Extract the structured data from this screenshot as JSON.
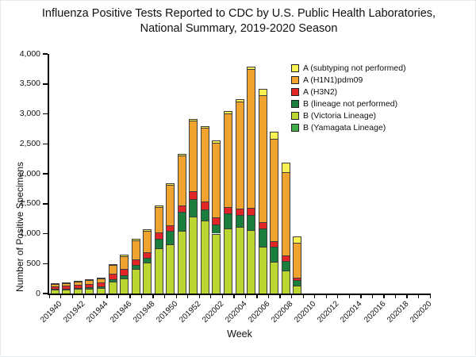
{
  "title": {
    "line1": "Influenza Positive Tests Reported to CDC by U.S. Public Health Laboratories,",
    "line2": "National Summary, 2019-2020 Season"
  },
  "chart_data": {
    "type": "bar",
    "stacked": true,
    "title": "Influenza Positive Tests Reported to CDC by U.S. Public Health Laboratories, National Summary, 2019-2020 Season",
    "xlabel": "Week",
    "ylabel": "Number of Positive Specimens",
    "ylim": [
      0,
      4000
    ],
    "ytick_interval": 500,
    "ytick_labels": [
      "0",
      "500",
      "1,000",
      "1,500",
      "2,000",
      "2,500",
      "3,000",
      "3,500",
      "4,000"
    ],
    "grid": false,
    "legend_position": "top-right-inside",
    "xtick_label_every": 2,
    "categories": [
      "201940",
      "201941",
      "201942",
      "201943",
      "201944",
      "201945",
      "201946",
      "201947",
      "201948",
      "201949",
      "201950",
      "201951",
      "201952",
      "202001",
      "202002",
      "202003",
      "202004",
      "202005",
      "202006",
      "202007",
      "202008",
      "202009",
      "202010",
      "202011",
      "202012",
      "202013",
      "202014",
      "202015",
      "202016",
      "202017",
      "202018",
      "202019",
      "202020"
    ],
    "series": [
      {
        "name": "B (Yamagata Lineage)",
        "color": "#41AD49",
        "values": [
          5,
          5,
          5,
          5,
          5,
          5,
          5,
          5,
          5,
          5,
          5,
          5,
          5,
          5,
          5,
          5,
          5,
          5,
          5,
          5,
          5,
          5,
          0,
          0,
          0,
          0,
          0,
          0,
          0,
          0,
          0,
          0,
          0
        ]
      },
      {
        "name": "B (Victoria Lineage)",
        "color": "#BCD631",
        "values": [
          55,
          65,
          70,
          80,
          90,
          190,
          245,
          410,
          510,
          750,
          820,
          1040,
          1285,
          1215,
          995,
          1085,
          1105,
          1050,
          775,
          530,
          375,
          130,
          0,
          0,
          0,
          0,
          0,
          0,
          0,
          0,
          0,
          0,
          0
        ]
      },
      {
        "name": "B (lineage not performed)",
        "color": "#1B7E3E",
        "values": [
          15,
          15,
          20,
          20,
          25,
          45,
          55,
          60,
          80,
          165,
          220,
          320,
          290,
          180,
          155,
          245,
          200,
          255,
          310,
          245,
          160,
          90,
          0,
          0,
          0,
          0,
          0,
          0,
          0,
          0,
          0,
          0,
          0
        ]
      },
      {
        "name": "A (H3N2)",
        "color": "#E22527",
        "values": [
          45,
          50,
          55,
          60,
          60,
          90,
          100,
          100,
          90,
          100,
          95,
          100,
          130,
          135,
          110,
          110,
          110,
          125,
          100,
          100,
          90,
          45,
          0,
          0,
          0,
          0,
          0,
          0,
          0,
          0,
          0,
          0,
          0
        ]
      },
      {
        "name": "A (H1N1)pdm09",
        "color": "#F0A32F",
        "values": [
          35,
          40,
          45,
          55,
          70,
          145,
          220,
          315,
          365,
          425,
          670,
          835,
          1180,
          1235,
          1255,
          1565,
          1790,
          2315,
          2120,
          1700,
          1400,
          580,
          0,
          0,
          0,
          0,
          0,
          0,
          0,
          0,
          0,
          0,
          0
        ]
      },
      {
        "name": "A (subtyping not performed)",
        "color": "#F7F252",
        "values": [
          15,
          15,
          15,
          20,
          20,
          15,
          20,
          20,
          20,
          25,
          30,
          30,
          30,
          30,
          30,
          40,
          40,
          40,
          110,
          120,
          150,
          100,
          0,
          0,
          0,
          0,
          0,
          0,
          0,
          0,
          0,
          0,
          0
        ]
      }
    ],
    "legend_entries_top_to_bottom": [
      {
        "label": "A (subtyping not performed)",
        "color": "#F7F252"
      },
      {
        "label": "A (H1N1)pdm09",
        "color": "#F0A32F"
      },
      {
        "label": "A (H3N2)",
        "color": "#E22527"
      },
      {
        "label": "B (lineage not performed)",
        "color": "#1B7E3E"
      },
      {
        "label": "B (Victoria Lineage)",
        "color": "#BCD631"
      },
      {
        "label": "B (Yamagata Lineage)",
        "color": "#41AD49"
      }
    ]
  }
}
